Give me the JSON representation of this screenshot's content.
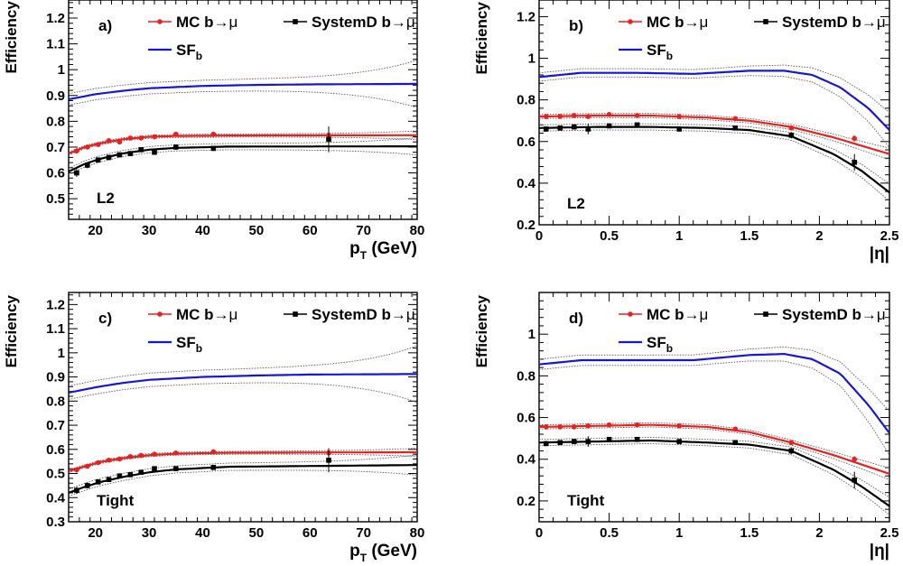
{
  "colors": {
    "mc": "#e8211f",
    "systemd": "#000000",
    "sf": "#1616d6",
    "band": "#555555"
  },
  "legend": {
    "mc": {
      "name": "MC b",
      "arrow": "→",
      "suffix": "μ"
    },
    "systemd": {
      "name": "SystemD b",
      "arrow": "→",
      "suffix": "μ"
    },
    "sf": {
      "main": "SF",
      "sub": "b"
    }
  },
  "chart_data": [
    {
      "type": "line",
      "panel": "a)",
      "cut": "L2",
      "ylabel": "Efficiency",
      "xlabel": {
        "main": "p",
        "sub": "T",
        "rest": " (GeV)"
      },
      "xlim": [
        15,
        80
      ],
      "ylim": [
        0.42,
        1.27
      ],
      "xticks": [
        "20",
        "30",
        "40",
        "50",
        "60",
        "70",
        "80"
      ],
      "xtick_values": [
        20,
        30,
        40,
        50,
        60,
        70,
        80
      ],
      "yticks": [
        "0.5",
        "0.6",
        "0.7",
        "0.8",
        "0.9",
        "1",
        "1.1",
        "1.2"
      ],
      "ytick_values": [
        0.5,
        0.6,
        0.7,
        0.8,
        0.9,
        1.0,
        1.1,
        1.2
      ],
      "series": [
        {
          "name": "MC b→μ",
          "kind": "points",
          "x": [
            16.5,
            18.5,
            20.5,
            22.5,
            24.5,
            26.5,
            28.5,
            31,
            35,
            42,
            63.5
          ],
          "y": [
            0.685,
            0.7,
            0.71,
            0.725,
            0.72,
            0.735,
            0.735,
            0.74,
            0.75,
            0.75,
            0.745
          ],
          "err": [
            0.01,
            0.008,
            0.008,
            0.007,
            0.007,
            0.007,
            0.007,
            0.006,
            0.006,
            0.006,
            0.01
          ]
        },
        {
          "name": "SystemD b→μ",
          "kind": "points",
          "x": [
            16.5,
            18.5,
            20.5,
            22.5,
            24.5,
            26.5,
            28.5,
            31,
            35,
            42,
            63.5
          ],
          "y": [
            0.6,
            0.63,
            0.65,
            0.66,
            0.67,
            0.675,
            0.69,
            0.68,
            0.7,
            0.695,
            0.73
          ],
          "err": [
            0.015,
            0.012,
            0.01,
            0.01,
            0.01,
            0.01,
            0.01,
            0.01,
            0.01,
            0.01,
            0.05
          ]
        },
        {
          "name": "MC b→μ fit",
          "kind": "fit",
          "x": [
            15,
            18,
            21,
            25,
            30,
            35,
            45,
            80
          ],
          "y": [
            0.675,
            0.7,
            0.715,
            0.73,
            0.74,
            0.743,
            0.745,
            0.746
          ],
          "band": 0.006
        },
        {
          "name": "SystemD b→μ fit",
          "kind": "fit",
          "x": [
            15,
            18,
            21,
            25,
            30,
            35,
            45,
            80
          ],
          "y": [
            0.605,
            0.635,
            0.655,
            0.675,
            0.69,
            0.697,
            0.702,
            0.703
          ],
          "band": 0.012
        },
        {
          "name": "SF_b",
          "kind": "sf",
          "x": [
            15,
            20,
            25,
            30,
            40,
            50,
            60,
            80
          ],
          "y": [
            0.885,
            0.905,
            0.918,
            0.928,
            0.937,
            0.941,
            0.943,
            0.945
          ],
          "band": 0.022
        }
      ]
    },
    {
      "type": "line",
      "panel": "b)",
      "cut": "L2",
      "ylabel": "Efficiency",
      "xlabel": {
        "main": "|η|",
        "sub": "",
        "rest": ""
      },
      "xlim": [
        0,
        2.5
      ],
      "ylim": [
        0.2,
        1.28
      ],
      "xticks": [
        "0",
        "0.5",
        "1",
        "1.5",
        "2",
        "2.5"
      ],
      "xtick_values": [
        0,
        0.5,
        1.0,
        1.5,
        2.0,
        2.5
      ],
      "yticks": [
        "0.2",
        "0.4",
        "0.6",
        "0.8",
        "1",
        "1.2"
      ],
      "ytick_values": [
        0.2,
        0.4,
        0.6,
        0.8,
        1.0,
        1.2
      ],
      "series": [
        {
          "name": "MC b→μ",
          "kind": "points",
          "x": [
            0.05,
            0.15,
            0.25,
            0.35,
            0.5,
            0.7,
            1.0,
            1.4,
            1.8,
            2.25
          ],
          "y": [
            0.72,
            0.72,
            0.725,
            0.72,
            0.73,
            0.725,
            0.72,
            0.71,
            0.665,
            0.615
          ],
          "err": [
            0.008,
            0.008,
            0.008,
            0.008,
            0.008,
            0.008,
            0.008,
            0.008,
            0.01,
            0.015
          ]
        },
        {
          "name": "SystemD b→μ",
          "kind": "points",
          "x": [
            0.05,
            0.15,
            0.25,
            0.35,
            0.5,
            0.7,
            1.0,
            1.4,
            1.8,
            2.25
          ],
          "y": [
            0.66,
            0.665,
            0.67,
            0.66,
            0.675,
            0.68,
            0.66,
            0.665,
            0.63,
            0.5
          ],
          "err": [
            0.012,
            0.012,
            0.012,
            0.025,
            0.012,
            0.012,
            0.012,
            0.012,
            0.015,
            0.04
          ]
        },
        {
          "name": "MC b→μ fit",
          "kind": "fit",
          "x": [
            0,
            0.4,
            0.8,
            1.2,
            1.5,
            1.8,
            2.1,
            2.5
          ],
          "y": [
            0.72,
            0.725,
            0.725,
            0.715,
            0.7,
            0.67,
            0.62,
            0.54
          ],
          "band": 0.01
        },
        {
          "name": "SystemD b→μ fit",
          "kind": "fit",
          "x": [
            0,
            0.4,
            0.8,
            1.2,
            1.5,
            1.8,
            2.1,
            2.3,
            2.5
          ],
          "y": [
            0.665,
            0.67,
            0.67,
            0.665,
            0.655,
            0.625,
            0.54,
            0.46,
            0.355
          ],
          "band": 0.015
        },
        {
          "name": "SF_b",
          "kind": "sf",
          "x": [
            0,
            0.3,
            0.7,
            1.1,
            1.5,
            1.75,
            1.95,
            2.15,
            2.35,
            2.5
          ],
          "y": [
            0.91,
            0.93,
            0.93,
            0.925,
            0.94,
            0.94,
            0.92,
            0.86,
            0.76,
            0.655
          ],
          "band": 0.02
        }
      ]
    },
    {
      "type": "line",
      "panel": "c)",
      "cut": "Tight",
      "ylabel": "Efficiency",
      "xlabel": {
        "main": "p",
        "sub": "T",
        "rest": " (GeV)"
      },
      "xlim": [
        15,
        80
      ],
      "ylim": [
        0.3,
        1.25
      ],
      "xticks": [
        "20",
        "30",
        "40",
        "50",
        "60",
        "70",
        "80"
      ],
      "xtick_values": [
        20,
        30,
        40,
        50,
        60,
        70,
        80
      ],
      "yticks": [
        "0.3",
        "0.4",
        "0.5",
        "0.6",
        "0.7",
        "0.8",
        "0.9",
        "1",
        "1.1",
        "1.2"
      ],
      "ytick_values": [
        0.3,
        0.4,
        0.5,
        0.6,
        0.7,
        0.8,
        0.9,
        1.0,
        1.1,
        1.2
      ],
      "series": [
        {
          "name": "MC b→μ",
          "kind": "points",
          "x": [
            16.5,
            18.5,
            20.5,
            22.5,
            24.5,
            26.5,
            28.5,
            31,
            35,
            42,
            63.5
          ],
          "y": [
            0.515,
            0.53,
            0.545,
            0.555,
            0.56,
            0.57,
            0.575,
            0.58,
            0.585,
            0.59,
            0.585
          ],
          "err": [
            0.01,
            0.008,
            0.008,
            0.007,
            0.007,
            0.007,
            0.007,
            0.006,
            0.006,
            0.006,
            0.01
          ]
        },
        {
          "name": "SystemD b→μ",
          "kind": "points",
          "x": [
            16.5,
            18.5,
            20.5,
            22.5,
            24.5,
            26.5,
            28.5,
            31,
            35,
            42,
            63.5
          ],
          "y": [
            0.43,
            0.45,
            0.465,
            0.475,
            0.49,
            0.495,
            0.505,
            0.52,
            0.52,
            0.525,
            0.555
          ],
          "err": [
            0.015,
            0.012,
            0.01,
            0.01,
            0.01,
            0.01,
            0.01,
            0.01,
            0.01,
            0.01,
            0.05
          ]
        },
        {
          "name": "MC b→μ fit",
          "kind": "fit",
          "x": [
            15,
            18,
            21,
            25,
            30,
            35,
            45,
            80
          ],
          "y": [
            0.51,
            0.53,
            0.548,
            0.563,
            0.576,
            0.582,
            0.586,
            0.588
          ],
          "band": 0.006
        },
        {
          "name": "SystemD b→μ fit",
          "kind": "fit",
          "x": [
            15,
            18,
            21,
            25,
            30,
            35,
            45,
            80
          ],
          "y": [
            0.42,
            0.445,
            0.465,
            0.485,
            0.505,
            0.517,
            0.528,
            0.535
          ],
          "band": 0.015
        },
        {
          "name": "SF_b",
          "kind": "sf",
          "x": [
            15,
            20,
            25,
            30,
            40,
            50,
            60,
            80
          ],
          "y": [
            0.835,
            0.857,
            0.875,
            0.888,
            0.9,
            0.906,
            0.91,
            0.912
          ],
          "band": 0.028
        }
      ]
    },
    {
      "type": "line",
      "panel": "d)",
      "cut": "Tight",
      "ylabel": "Efficiency",
      "xlabel": {
        "main": "|η|",
        "sub": "",
        "rest": ""
      },
      "xlim": [
        0,
        2.5
      ],
      "ylim": [
        0.1,
        1.2
      ],
      "xticks": [
        "0",
        "0.5",
        "1",
        "1.5",
        "2",
        "2.5"
      ],
      "xtick_values": [
        0,
        0.5,
        1.0,
        1.5,
        2.0,
        2.5
      ],
      "yticks": [
        "0.2",
        "0.4",
        "0.6",
        "0.8",
        "1"
      ],
      "ytick_values": [
        0.2,
        0.4,
        0.6,
        0.8,
        1.0
      ],
      "series": [
        {
          "name": "MC b→μ",
          "kind": "points",
          "x": [
            0.05,
            0.15,
            0.25,
            0.35,
            0.5,
            0.7,
            1.0,
            1.4,
            1.8,
            2.25
          ],
          "y": [
            0.555,
            0.555,
            0.555,
            0.56,
            0.565,
            0.565,
            0.56,
            0.545,
            0.48,
            0.4
          ],
          "err": [
            0.008,
            0.008,
            0.008,
            0.008,
            0.008,
            0.008,
            0.008,
            0.008,
            0.01,
            0.015
          ]
        },
        {
          "name": "SystemD b→μ",
          "kind": "points",
          "x": [
            0.05,
            0.15,
            0.25,
            0.35,
            0.5,
            0.7,
            1.0,
            1.4,
            1.8,
            2.25
          ],
          "y": [
            0.475,
            0.48,
            0.485,
            0.485,
            0.495,
            0.495,
            0.485,
            0.48,
            0.44,
            0.3
          ],
          "err": [
            0.012,
            0.012,
            0.012,
            0.025,
            0.012,
            0.012,
            0.012,
            0.012,
            0.015,
            0.04
          ]
        },
        {
          "name": "MC b→μ fit",
          "kind": "fit",
          "x": [
            0,
            0.4,
            0.8,
            1.2,
            1.5,
            1.8,
            2.1,
            2.5
          ],
          "y": [
            0.555,
            0.56,
            0.565,
            0.555,
            0.53,
            0.48,
            0.42,
            0.33
          ],
          "band": 0.01
        },
        {
          "name": "SystemD b→μ fit",
          "kind": "fit",
          "x": [
            0,
            0.4,
            0.8,
            1.2,
            1.5,
            1.8,
            2.1,
            2.3,
            2.5
          ],
          "y": [
            0.48,
            0.485,
            0.49,
            0.48,
            0.47,
            0.44,
            0.35,
            0.27,
            0.175
          ],
          "band": 0.015
        },
        {
          "name": "SF_b",
          "kind": "sf",
          "x": [
            0,
            0.3,
            0.7,
            1.1,
            1.5,
            1.75,
            1.95,
            2.15,
            2.35,
            2.5
          ],
          "y": [
            0.855,
            0.875,
            0.875,
            0.875,
            0.9,
            0.905,
            0.88,
            0.81,
            0.66,
            0.525
          ],
          "band": 0.025
        }
      ]
    }
  ]
}
